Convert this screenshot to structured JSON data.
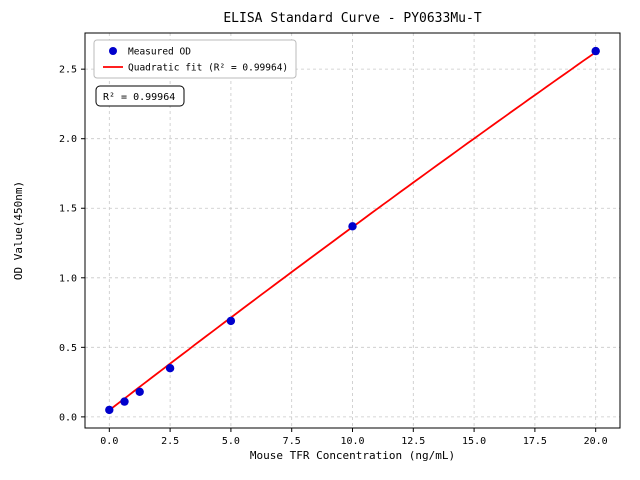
{
  "figure": {
    "background": "#ffffff",
    "text_color": "#000000",
    "grid_color": "#c8c8c8",
    "border_color": "#000000"
  },
  "chart_data": {
    "type": "scatter",
    "title": "ELISA Standard Curve - PY0633Mu-T",
    "xlabel": "Mouse TFR Concentration (ng/mL)",
    "ylabel": "OD Value(450nm)",
    "xlim": [
      -1,
      21
    ],
    "ylim": [
      -0.08,
      2.76
    ],
    "x_ticks": [
      0.0,
      2.5,
      5.0,
      7.5,
      10.0,
      12.5,
      15.0,
      17.5,
      20.0
    ],
    "x_tick_labels": [
      "0.0",
      "2.5",
      "5.0",
      "7.5",
      "10.0",
      "12.5",
      "15.0",
      "17.5",
      "20.0"
    ],
    "y_ticks": [
      0.0,
      0.5,
      1.0,
      1.5,
      2.0,
      2.5
    ],
    "y_tick_labels": [
      "0.0",
      "0.5",
      "1.0",
      "1.5",
      "2.0",
      "2.5"
    ],
    "grid": true,
    "grid_style": "dashed",
    "legend": {
      "position": "upper-left",
      "entries": [
        {
          "label": "Measured OD",
          "marker": "circle",
          "color": "#0000cc"
        },
        {
          "label": "Quadratic fit (R² = 0.99964)",
          "marker": "line",
          "color": "#ff0000"
        }
      ]
    },
    "annotation": "R² = 0.99964",
    "series": [
      {
        "name": "Measured OD",
        "type": "scatter",
        "color": "#0000cc",
        "points": [
          {
            "x": 0,
            "y": 0.05
          },
          {
            "x": 0.625,
            "y": 0.11
          },
          {
            "x": 1.25,
            "y": 0.18
          },
          {
            "x": 2.5,
            "y": 0.35
          },
          {
            "x": 5,
            "y": 0.69
          },
          {
            "x": 10,
            "y": 1.37
          },
          {
            "x": 20,
            "y": 2.63
          }
        ]
      },
      {
        "name": "Quadratic fit",
        "type": "line",
        "color": "#ff0000",
        "r_squared": 0.99964,
        "fit_coefficients": {
          "a": -0.0003,
          "b": 0.1347,
          "c": 0.048
        },
        "x_range": [
          0,
          20
        ]
      }
    ]
  }
}
